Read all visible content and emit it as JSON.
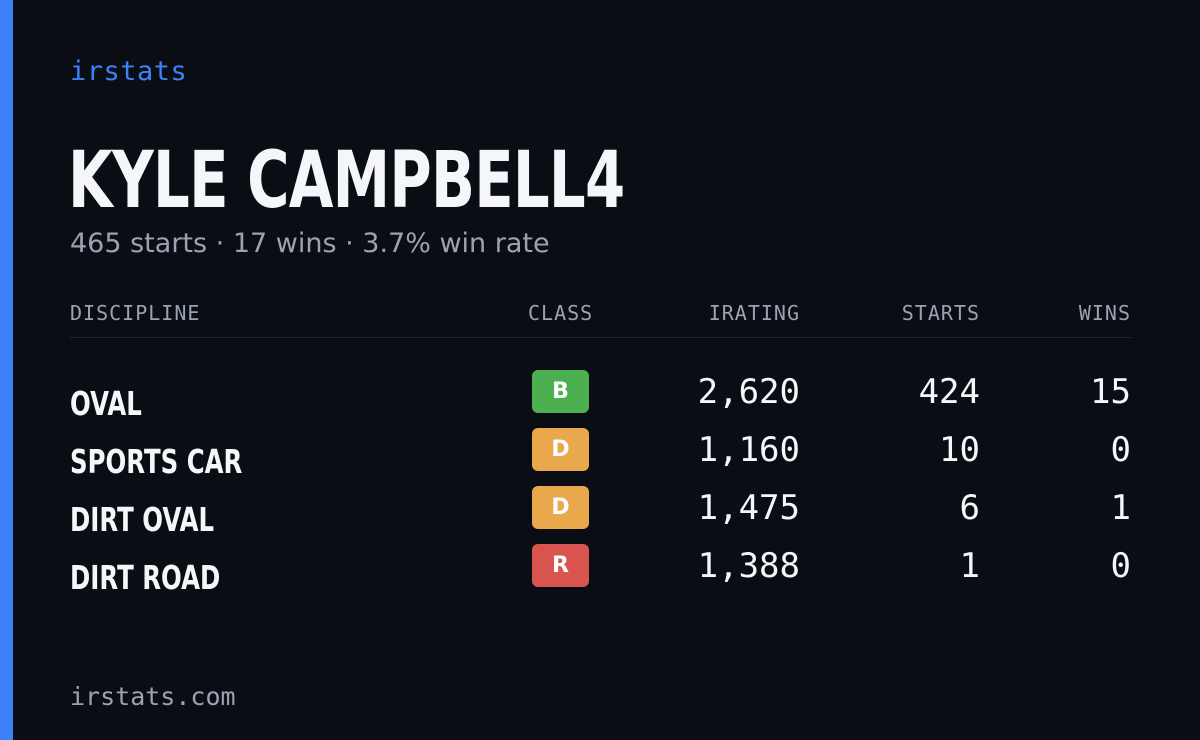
{
  "brand": "irstats",
  "player": {
    "name": "KYLE CAMPBELL4",
    "summary": "465 starts · 17 wins · 3.7% win rate"
  },
  "table": {
    "headers": {
      "discipline": "DISCIPLINE",
      "class": "CLASS",
      "irating": "IRATING",
      "starts": "STARTS",
      "wins": "WINS"
    },
    "rows": [
      {
        "discipline": "OVAL",
        "class": "B",
        "class_color": "#4cb050",
        "irating": "2,620",
        "starts": "424",
        "wins": "15"
      },
      {
        "discipline": "SPORTS CAR",
        "class": "D",
        "class_color": "#e9a84b",
        "irating": "1,160",
        "starts": "10",
        "wins": "0"
      },
      {
        "discipline": "DIRT OVAL",
        "class": "D",
        "class_color": "#e9a84b",
        "irating": "1,475",
        "starts": "6",
        "wins": "1"
      },
      {
        "discipline": "DIRT ROAD",
        "class": "R",
        "class_color": "#d9534f",
        "irating": "1,388",
        "starts": "1",
        "wins": "0"
      }
    ]
  },
  "footer": "irstats.com",
  "colors": {
    "accent": "#3b82f6",
    "background": "#0b0d14"
  }
}
